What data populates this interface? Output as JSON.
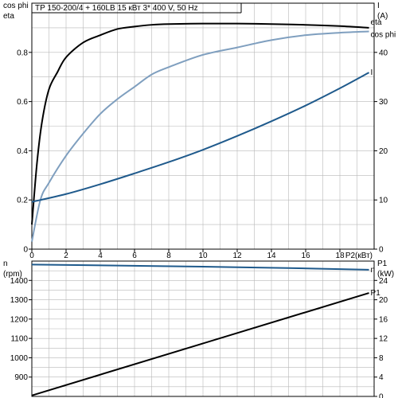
{
  "title": "TP 150-200/4 + 160LB    15 кВт   3* 400 V, 50 Hz",
  "colors": {
    "eta": "#000000",
    "cos_phi": "#7f9fbf",
    "current": "#1f5a8c",
    "speed": "#1f5a8c",
    "p1": "#000000",
    "grid": "#b8b8b8"
  },
  "chart_data": [
    {
      "type": "line",
      "title": "TP 150-200/4 + 160LB    15 кВт   3* 400 V, 50 Hz",
      "xlabel": "P2(кВт)",
      "xlim": [
        0,
        20
      ],
      "xticks": [
        "0",
        "2",
        "4",
        "6",
        "8",
        "10",
        "12",
        "14",
        "16",
        "18"
      ],
      "y_left_label_1": "cos phi",
      "y_left_label_2": "eta",
      "ylim_left": [
        0,
        1
      ],
      "yticks_left": [
        "0",
        "0.2",
        "0.4",
        "0.6",
        "0.8"
      ],
      "y_right_label_1": "I",
      "y_right_label_2": "(A)",
      "ylim_right": [
        0,
        50
      ],
      "yticks_right": [
        "0",
        "10",
        "20",
        "30",
        "40"
      ],
      "grid": true,
      "series": [
        {
          "name": "eta",
          "axis": "left",
          "x": [
            0,
            0.3,
            0.6,
            1,
            1.5,
            2,
            3,
            4,
            5,
            6,
            7,
            8,
            10,
            12,
            14,
            16,
            18,
            19.7
          ],
          "y": [
            0.1,
            0.35,
            0.52,
            0.65,
            0.72,
            0.78,
            0.84,
            0.87,
            0.895,
            0.905,
            0.912,
            0.915,
            0.917,
            0.917,
            0.915,
            0.912,
            0.907,
            0.9
          ]
        },
        {
          "name": "cos phi",
          "axis": "left",
          "x": [
            0,
            0.5,
            1,
            2,
            3,
            4,
            5,
            6,
            7,
            8,
            10,
            12,
            14,
            16,
            18,
            19.7
          ],
          "y": [
            0.03,
            0.2,
            0.27,
            0.38,
            0.47,
            0.55,
            0.61,
            0.66,
            0.71,
            0.74,
            0.79,
            0.82,
            0.85,
            0.87,
            0.88,
            0.885
          ]
        },
        {
          "name": "I",
          "axis": "right",
          "x": [
            0,
            2,
            4,
            6,
            8,
            10,
            12,
            14,
            16,
            18,
            19.7
          ],
          "y": [
            9.6,
            11.2,
            13.2,
            15.4,
            17.7,
            20.2,
            23.0,
            26.0,
            29.2,
            32.7,
            35.9
          ]
        }
      ]
    },
    {
      "type": "line",
      "xlim": [
        0,
        20
      ],
      "y_left_label_1": "n",
      "y_left_label_2": "(rpm)",
      "ylim_left": [
        800,
        1500
      ],
      "yticks_left": [
        "900",
        "1000",
        "1100",
        "1200",
        "1300",
        "1400"
      ],
      "y_right_label_1": "P1",
      "y_right_label_2": "(kW)",
      "ylim_right": [
        0,
        28
      ],
      "yticks_right": [
        "0",
        "4",
        "8",
        "12",
        "16",
        "20",
        "24"
      ],
      "grid": true,
      "series": [
        {
          "name": "n",
          "axis": "left",
          "x": [
            0,
            5,
            10,
            15,
            19.7
          ],
          "y": [
            1482,
            1477,
            1471,
            1464,
            1455
          ]
        },
        {
          "name": "P1",
          "axis": "right",
          "x": [
            0,
            19.7
          ],
          "y": [
            0.2,
            21.4
          ]
        }
      ]
    }
  ]
}
